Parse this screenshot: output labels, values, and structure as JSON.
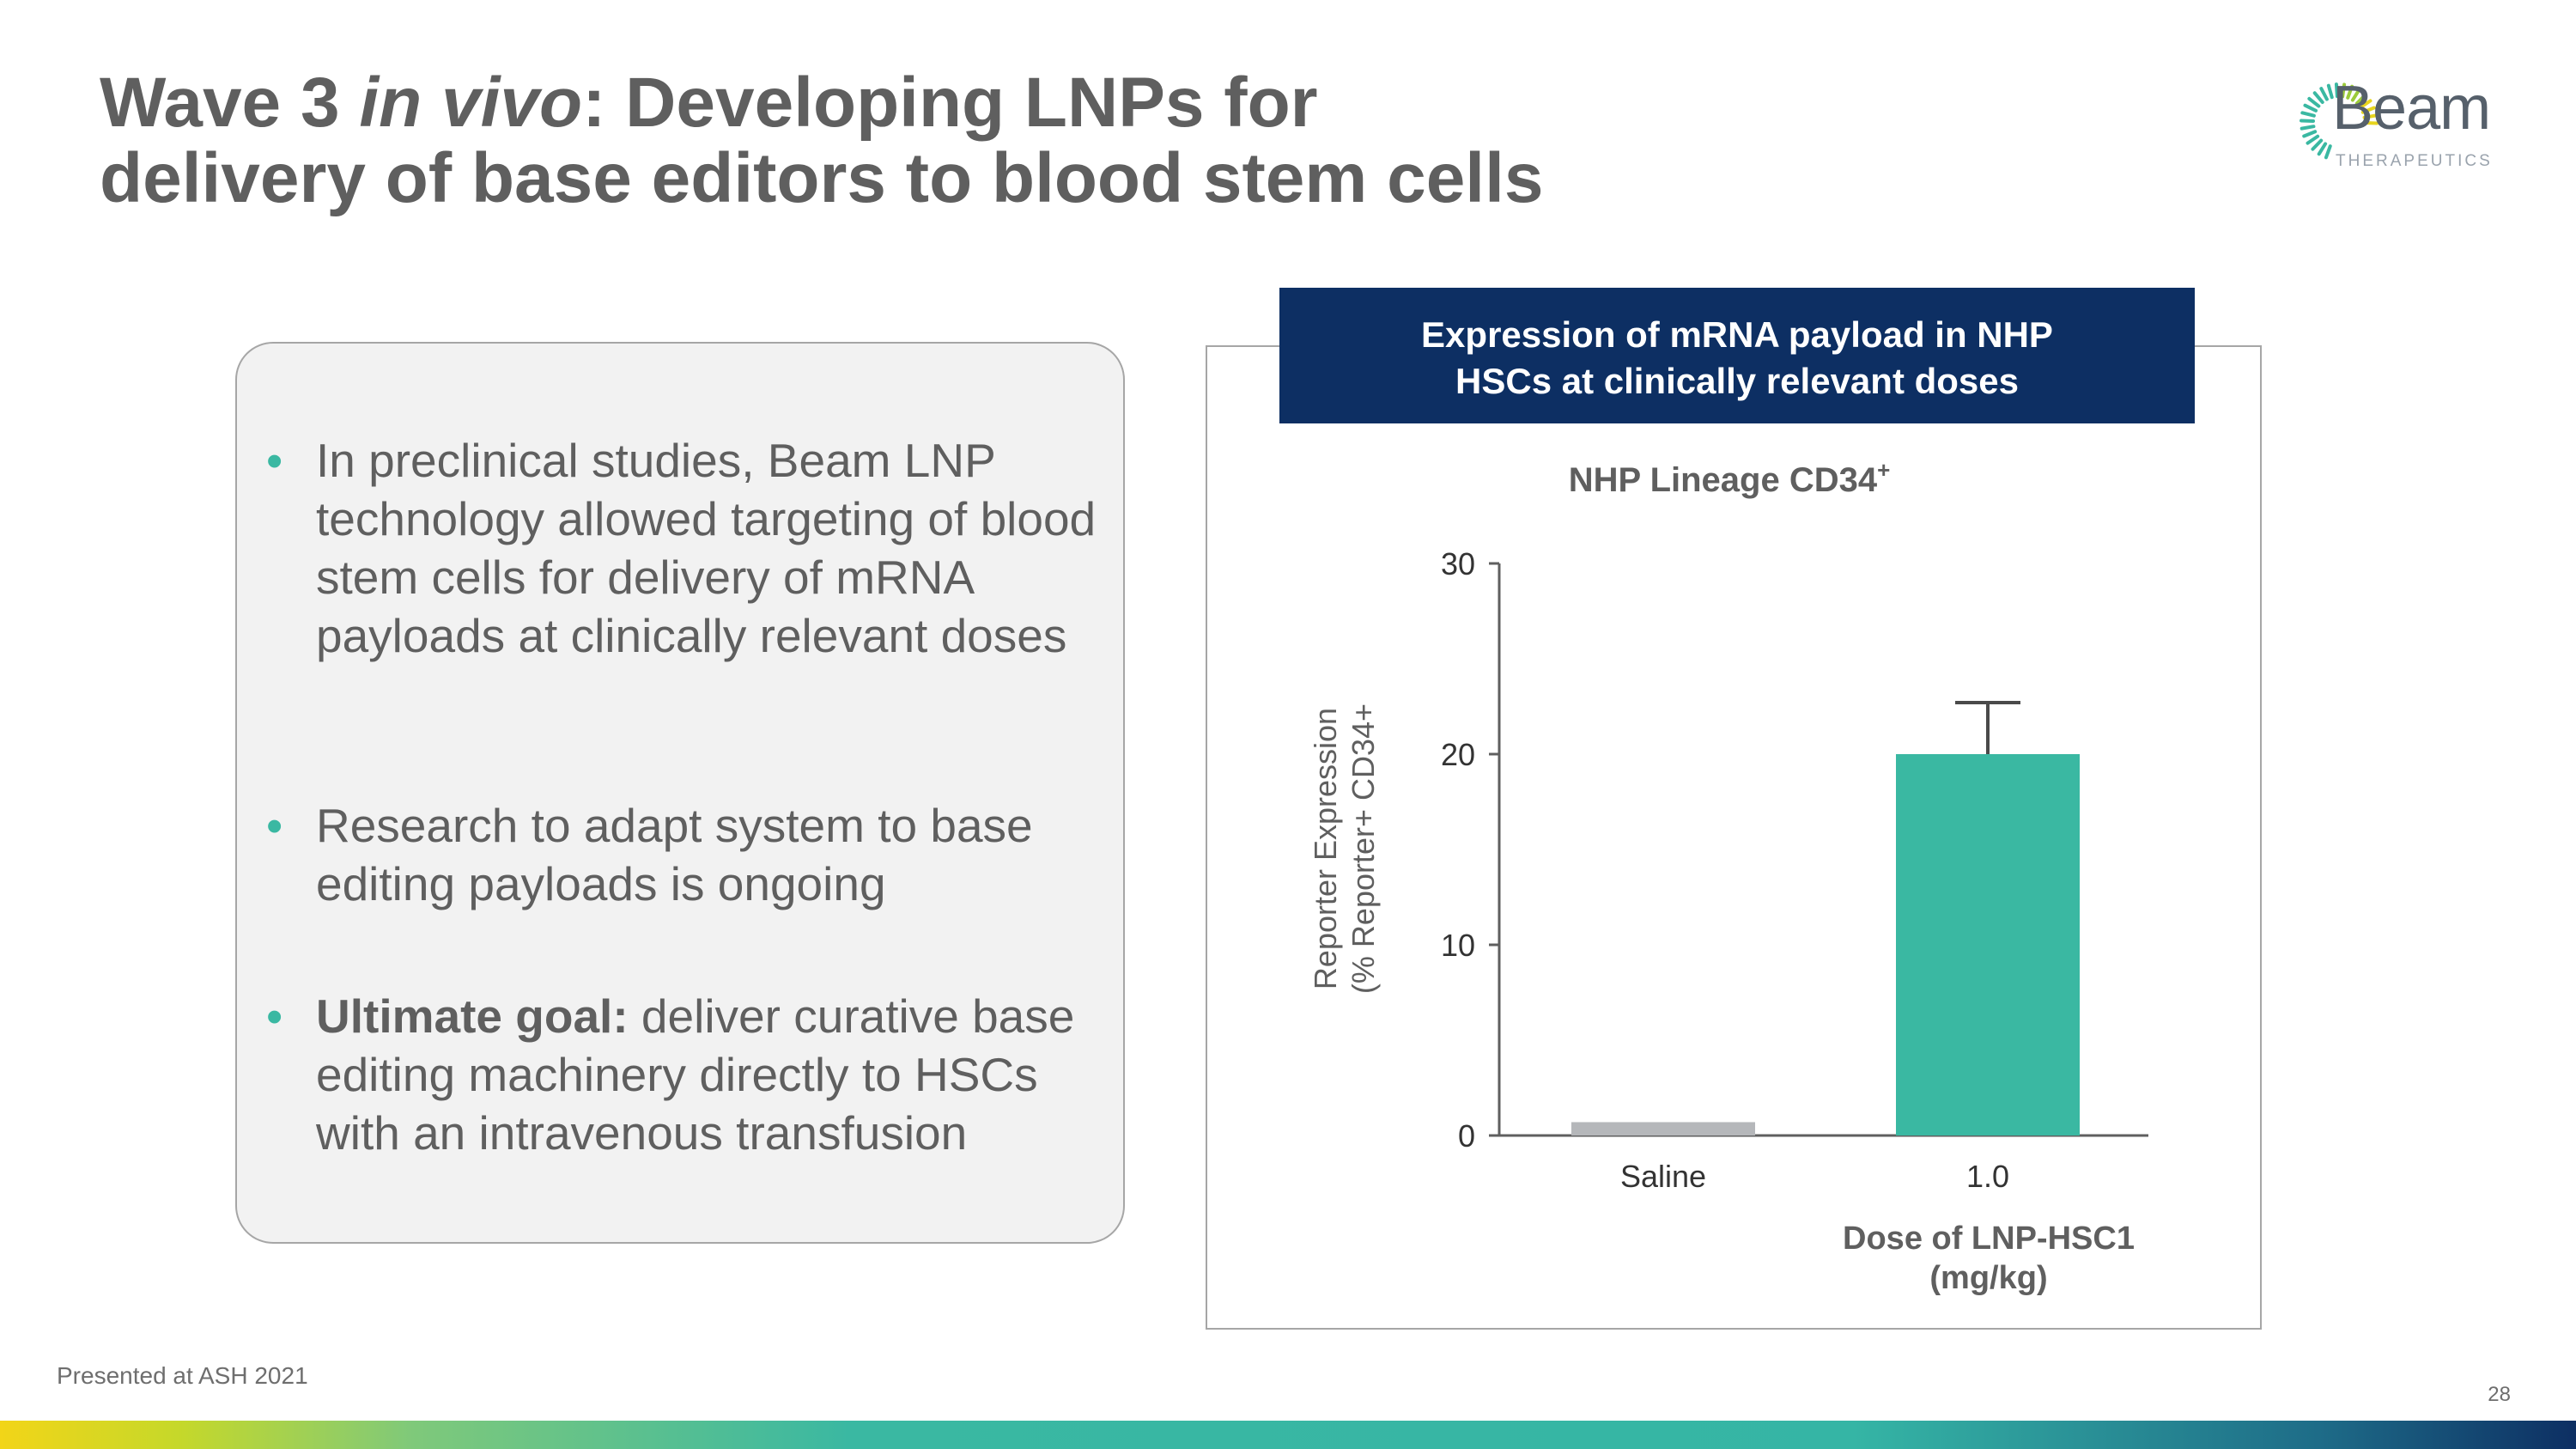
{
  "slide": {
    "title_part1": "Wave 3 ",
    "title_italic": "in vivo",
    "title_part2": ": Developing LNPs for",
    "title_line2": "delivery of base editors to blood stem cells",
    "footer": "Presented at ASH 2021",
    "page_number": "28"
  },
  "logo": {
    "word": "Beam",
    "subtitle": "THERAPEUTICS",
    "colors": {
      "teal": "#3ab8a2",
      "yellow": "#e8d51e",
      "green": "#9ccb3b"
    }
  },
  "bullets": [
    {
      "lead": "",
      "text": "In preclinical studies, Beam LNP technology allowed targeting of blood stem cells for delivery of mRNA payloads at clinically relevant doses"
    },
    {
      "lead": "",
      "text": "Research to adapt system to base editing payloads is ongoing"
    },
    {
      "lead": "Ultimate goal:",
      "text": " deliver curative base editing machinery directly to HSCs with an intravenous transfusion"
    }
  ],
  "bullet_symbol": "•",
  "chart_panel": {
    "header_line1": "Expression of mRNA payload in NHP",
    "header_line2": "HSCs at clinically relevant doses",
    "header_color": "#0d2f63"
  },
  "chart_data": {
    "type": "bar",
    "title": "NHP Lineage CD34",
    "title_superscript": "+",
    "categories": [
      "Saline",
      "1.0"
    ],
    "values": [
      0.7,
      20.0
    ],
    "error_upper": [
      0,
      2.7
    ],
    "bar_colors": [
      "#b5b7ba",
      "#3ab8a2"
    ],
    "ylabel_line1": "Reporter Expression",
    "ylabel_line2": "(% Reporter+ CD34+",
    "xlabel_line1": "Dose of LNP-HSC1",
    "xlabel_line2": "(mg/kg)",
    "yticks": [
      0,
      10,
      20,
      30
    ],
    "ylim": [
      0,
      30
    ],
    "grid": false
  }
}
